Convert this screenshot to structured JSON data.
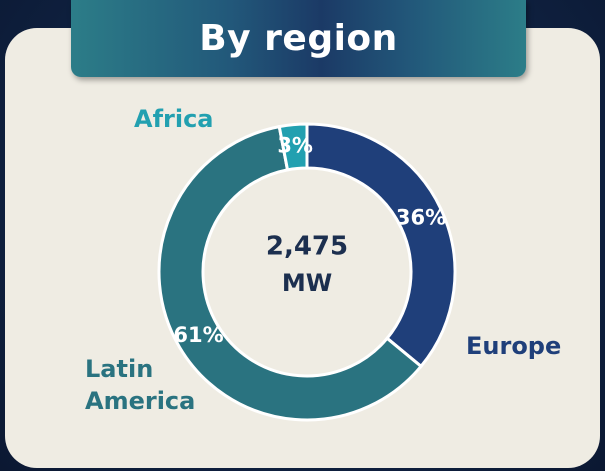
{
  "chart_data": {
    "type": "donut",
    "title": "By region",
    "categories": [
      "Europe",
      "Latin America",
      "Africa"
    ],
    "values": [
      36,
      61,
      3
    ],
    "value_labels": [
      "36%",
      "61%",
      "3%"
    ],
    "colors": [
      "#1f3f7a",
      "#2a7380",
      "#22a0b0"
    ],
    "center_value": "2,475",
    "center_unit": "MW"
  }
}
